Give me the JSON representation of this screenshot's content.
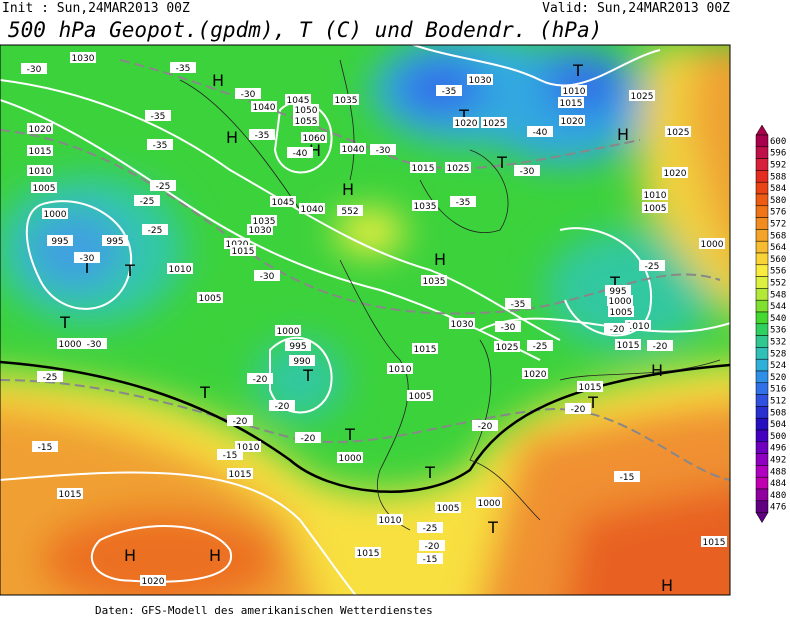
{
  "header": {
    "init": "Init : Sun,24MAR2013 00Z",
    "valid": "Valid: Sun,24MAR2013 00Z",
    "title": "500 hPa Geopot.(gpdm), T (C) und Bodendr. (hPa)"
  },
  "footer": "Daten: GFS-Modell des amerikanischen Wetterdienstes",
  "colorbar": {
    "labels": [
      "600",
      "596",
      "592",
      "588",
      "584",
      "580",
      "576",
      "572",
      "568",
      "564",
      "560",
      "556",
      "552",
      "548",
      "544",
      "540",
      "536",
      "532",
      "528",
      "524",
      "520",
      "516",
      "512",
      "508",
      "504",
      "500",
      "496",
      "492",
      "488",
      "484",
      "480",
      "476"
    ],
    "colors": [
      "#a8004a",
      "#c0104a",
      "#d8203a",
      "#e42c20",
      "#ea4414",
      "#ee5c14",
      "#f07418",
      "#f28c20",
      "#f4a428",
      "#f8bc30",
      "#f8d438",
      "#f8ec40",
      "#dcf040",
      "#b4e838",
      "#80e030",
      "#44d830",
      "#30d060",
      "#30c890",
      "#30c0b8",
      "#30b0d8",
      "#3090e8",
      "#3070e8",
      "#3050e0",
      "#2830d0",
      "#2410c0",
      "#4400c0",
      "#7000c0",
      "#9000c0",
      "#b000c0",
      "#c000b0",
      "#9000a0",
      "#600080"
    ]
  },
  "map_labels": [
    "H",
    "H",
    "H",
    "H",
    "H",
    "H",
    "H",
    "H",
    "H",
    "H",
    "T",
    "T",
    "T",
    "T",
    "T",
    "T",
    "T",
    "T",
    "T",
    "T",
    "T",
    "T",
    "T",
    "1030",
    "1020",
    "1015",
    "1010",
    "1005",
    "1000",
    "995",
    "995",
    "1010",
    "1005",
    "1000",
    "1000",
    "995",
    "990",
    "1010",
    "1015",
    "1005",
    "1000",
    "1010",
    "1015",
    "1015",
    "1020",
    "1040",
    "1045",
    "1050",
    "1055",
    "1060",
    "1045",
    "1040",
    "1035",
    "1030",
    "1035",
    "1035",
    "1030",
    "1025",
    "1020",
    "1015",
    "1010",
    "1015",
    "995",
    "1000",
    "1005",
    "1010",
    "1015",
    "1020",
    "1025",
    "1025",
    "1020",
    "1010",
    "1005",
    "1000",
    "1030",
    "1025",
    "1020",
    "1025",
    "1015",
    "1035",
    "1040",
    "1020",
    "1015",
    "1000",
    "1010",
    "1015",
    "1015",
    "1005",
    "-30",
    "-35",
    "-35",
    "-30",
    "-35",
    "-40",
    "-30",
    "-35",
    "-40",
    "-35",
    "-30",
    "-35",
    "-25",
    "-25",
    "-25",
    "-30",
    "-30",
    "-25",
    "-20",
    "-20",
    "-20",
    "-20",
    "-15",
    "-15",
    "-20",
    "-25",
    "-30",
    "-35",
    "-20",
    "-20",
    "-25",
    "-20",
    "-15",
    "-25",
    "-20",
    "-15",
    "-30",
    "552"
  ]
}
